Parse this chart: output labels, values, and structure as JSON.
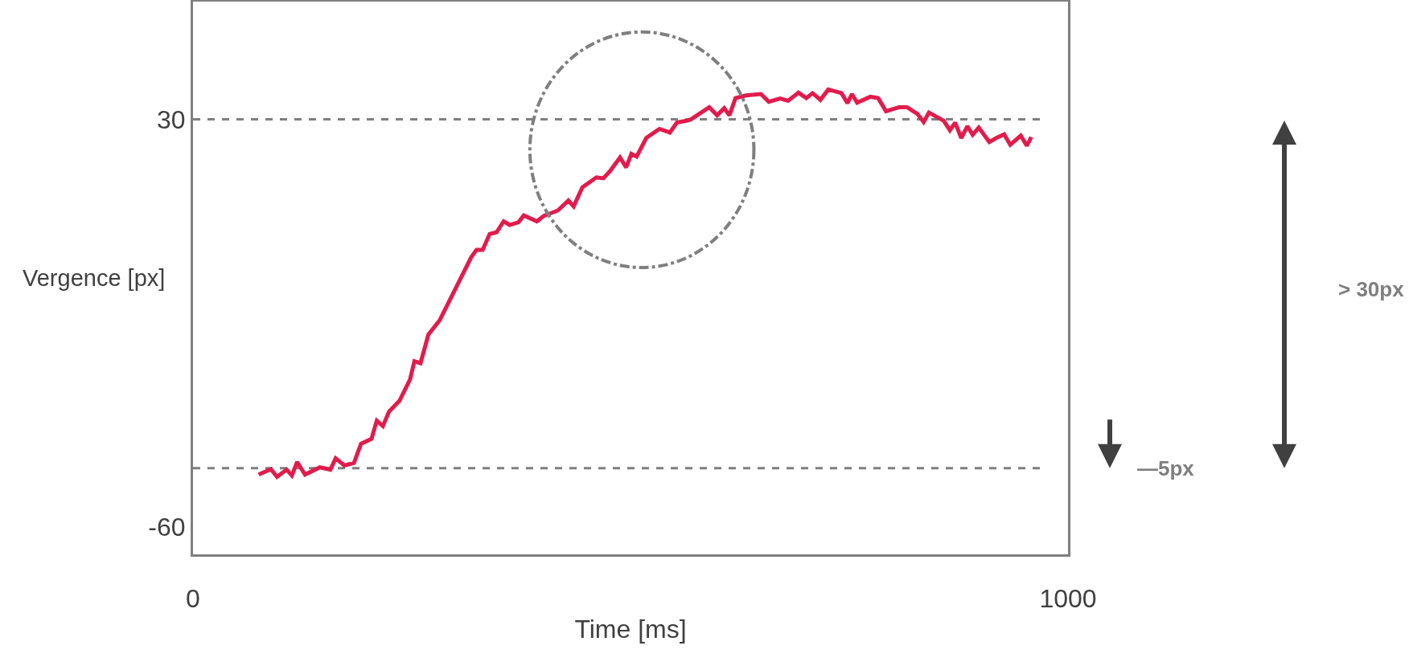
{
  "chart_data": {
    "type": "line",
    "xlabel": "Time [ms]",
    "ylabel": "Vergence [px]",
    "xlim": [
      0,
      1000
    ],
    "xticks": [
      0,
      1000
    ],
    "ylim": [
      -66,
      56
    ],
    "yticks": [
      -60,
      30
    ],
    "series": [
      {
        "color": "#e31b4c",
        "x": [
          75,
          89,
          96,
          107,
          113,
          119,
          128,
          145,
          157,
          163,
          173,
          184,
          192,
          204,
          210,
          217,
          224,
          236,
          248,
          253,
          260,
          269,
          282,
          318,
          324,
          331,
          339,
          347,
          355,
          362,
          372,
          378,
          393,
          401,
          417,
          429,
          435,
          445,
          461,
          469,
          477,
          488,
          495,
          501,
          507,
          518,
          533,
          545,
          553,
          564,
          569,
          590,
          599,
          607,
          613,
          620,
          632,
          649,
          658,
          671,
          680,
          692,
          701,
          708,
          717,
          726,
          741,
          748,
          753,
          759,
          774,
          783,
          792,
          807,
          816,
          828,
          835,
          841,
          858,
          865,
          871,
          878,
          885,
          891,
          898,
          910,
          918,
          927,
          934,
          946,
          953,
          958
        ],
        "values": [
          -48.4,
          -47.2,
          -48.9,
          -47.3,
          -48.6,
          -45.6,
          -48.4,
          -46.8,
          -47.3,
          -44.8,
          -46.4,
          -45.8,
          -41.6,
          -40.5,
          -36.5,
          -37.7,
          -34.5,
          -32.1,
          -27.4,
          -23.4,
          -23.8,
          -17.5,
          -14.3,
          -0.4,
          1.2,
          1.2,
          4.7,
          5.1,
          7.5,
          6.7,
          7.3,
          8.8,
          7.5,
          8.7,
          9.9,
          12.1,
          10.8,
          15.0,
          17.2,
          17.0,
          18.7,
          21.6,
          19.4,
          22.4,
          21.8,
          25.9,
          27.9,
          27.1,
          29.3,
          29.7,
          30.0,
          32.7,
          30.9,
          32.5,
          30.9,
          34.7,
          35.3,
          35.6,
          33.9,
          34.6,
          34.1,
          35.9,
          34.7,
          35.8,
          34.3,
          36.6,
          35.8,
          33.6,
          35.6,
          33.7,
          35.0,
          34.7,
          31.8,
          32.7,
          32.7,
          31.2,
          29.4,
          31.5,
          29.7,
          27.6,
          29.3,
          25.9,
          28.5,
          26.6,
          28.2,
          25.0,
          25.9,
          26.7,
          24.4,
          26.4,
          24.2,
          26.1
        ]
      }
    ],
    "ref_lines": [
      {
        "axis": "y",
        "value": 30,
        "color": "#7f7f7f",
        "line_style": "dashed"
      },
      {
        "axis": "y",
        "value": -47,
        "color": "#7f7f7f",
        "line_style": "dashed"
      }
    ],
    "annotations": [
      "> 30px",
      "—5px"
    ],
    "grid": false
  }
}
